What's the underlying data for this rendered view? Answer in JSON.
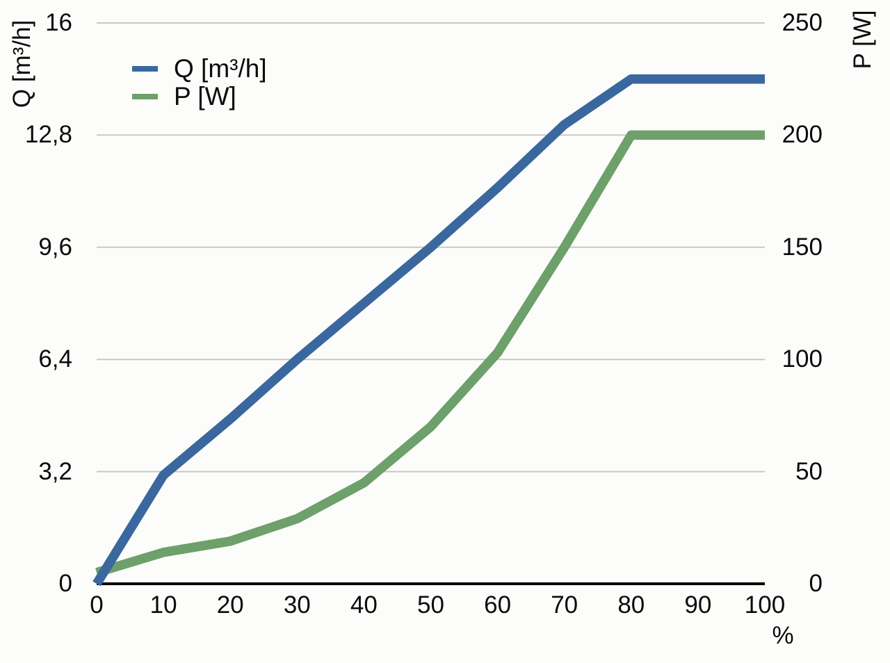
{
  "chart_data": {
    "type": "line",
    "title": "",
    "x_axis_label": "%",
    "x": [
      0,
      10,
      20,
      30,
      40,
      50,
      60,
      70,
      80,
      90,
      100
    ],
    "x_ticks": [
      "0",
      "10",
      "20",
      "30",
      "40",
      "50",
      "60",
      "70",
      "80",
      "90",
      "100"
    ],
    "left_axis": {
      "label": "Q [m³/h]",
      "ticks": [
        "0",
        "3,2",
        "6,4",
        "9,6",
        "12,8",
        "16"
      ],
      "tick_values": [
        0,
        3.2,
        6.4,
        9.6,
        12.8,
        16
      ],
      "range": [
        0,
        16
      ]
    },
    "right_axis": {
      "label": "P [W]",
      "ticks": [
        "0",
        "50",
        "100",
        "150",
        "200",
        "250"
      ],
      "tick_values": [
        0,
        50,
        100,
        150,
        200,
        250
      ],
      "range": [
        0,
        250
      ]
    },
    "series": [
      {
        "name": "Q [m³/h]",
        "axis": "left",
        "color": "#3a689e",
        "values": [
          0,
          3.1,
          4.7,
          6.4,
          8.0,
          9.6,
          11.3,
          13.1,
          14.4,
          14.4,
          14.4
        ]
      },
      {
        "name": "P [W]",
        "axis": "right",
        "color": "#6da06a",
        "values": [
          5,
          14,
          19,
          29,
          45,
          70,
          103,
          150,
          200,
          200,
          200
        ]
      }
    ],
    "legend": {
      "position": "top-left",
      "items": [
        "Q [m³/h]",
        "P [W]"
      ]
    },
    "grid": "horizontal",
    "colors": {
      "grid": "#c8c8c8",
      "axis": "#000000",
      "text": "#0b0b0b",
      "background": "#fcfdfa"
    }
  }
}
